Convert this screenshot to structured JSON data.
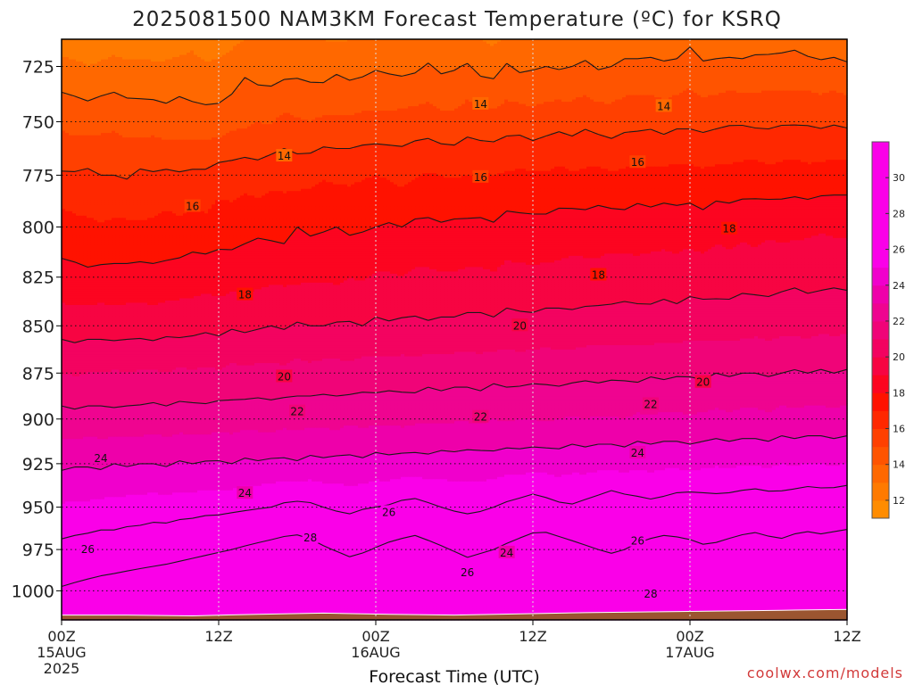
{
  "chart_data": {
    "type": "heatmap",
    "title": "2025081500 NAM3KM Forecast Temperature (ºC) for KSRQ",
    "xlabel": "Forecast Time (UTC)",
    "ylabel": "",
    "credit": "coolwx.com/models",
    "x_ticks": [
      {
        "hour": 0,
        "lines": [
          "00Z",
          "15AUG",
          "2025"
        ]
      },
      {
        "hour": 12,
        "lines": [
          "12Z"
        ]
      },
      {
        "hour": 24,
        "lines": [
          "00Z",
          "16AUG"
        ]
      },
      {
        "hour": 36,
        "lines": [
          "12Z"
        ]
      },
      {
        "hour": 48,
        "lines": [
          "00Z",
          "17AUG"
        ]
      },
      {
        "hour": 60,
        "lines": [
          "12Z"
        ]
      }
    ],
    "y_ticks": [
      725,
      750,
      775,
      800,
      825,
      850,
      875,
      900,
      925,
      950,
      975,
      1000
    ],
    "xlim": [
      0,
      60
    ],
    "ylim_pressure_hPa": [
      713,
      1018
    ],
    "y_scale": "log",
    "grid": true,
    "colorbar": {
      "ticks": [
        12,
        14,
        16,
        18,
        20,
        22,
        24,
        26,
        28,
        30
      ],
      "range": [
        11,
        32
      ],
      "position": "right"
    },
    "levels": [
      11,
      12,
      13,
      14,
      15,
      16,
      17,
      18,
      19,
      20,
      21,
      22,
      23,
      24,
      25,
      26,
      27,
      28,
      29,
      30,
      31,
      32
    ],
    "colors": [
      "#ff8c00",
      "#ff7a00",
      "#ff6800",
      "#ff5400",
      "#ff4000",
      "#ff2800",
      "#ff1200",
      "#fc0520",
      "#f70442",
      "#f30360",
      "#f00478",
      "#ef0490",
      "#ee00aa",
      "#f000cc",
      "#fa00e8"
    ],
    "contour_levels": [
      14,
      16,
      18,
      20,
      22,
      24,
      26,
      28
    ],
    "surface_color": "#9b5530",
    "surface_pressure_hPa": [
      1015.0,
      1015.0,
      1015.5,
      1014.5,
      1013.8,
      1014.5,
      1015.0,
      1014.2,
      1013.5,
      1013.0,
      1012.5,
      1012.0,
      1011.5
    ],
    "surface_hours": [
      0,
      5,
      10,
      15,
      20,
      25,
      30,
      35,
      40,
      45,
      50,
      55,
      60
    ],
    "hours": [
      0,
      1,
      2,
      3,
      4,
      5,
      6,
      7,
      8,
      9,
      10,
      11,
      12,
      13,
      14,
      15,
      16,
      17,
      18,
      19,
      20,
      21,
      22,
      23,
      24,
      25,
      26,
      27,
      28,
      29,
      30,
      31,
      32,
      33,
      34,
      35,
      36,
      37,
      38,
      39,
      40,
      41,
      42,
      43,
      44,
      45,
      46,
      47,
      48,
      49,
      50,
      51,
      52,
      53,
      54,
      55,
      56,
      57,
      58,
      59,
      60
    ],
    "pressures_hPa": [
      713,
      725,
      750,
      775,
      800,
      825,
      850,
      875,
      900,
      925,
      950,
      975,
      1000,
      1018
    ],
    "temperature_C": [
      [
        12.4,
        12.2,
        12.0,
        12.2,
        12.6,
        12.4,
        12.3,
        12.5,
        12.3,
        12.4,
        12.8,
        12.4,
        12.6,
        12.8,
        13.0,
        13.2,
        13.0,
        13.0,
        13.1,
        13.1,
        13.0,
        12.9,
        13.0,
        13.1,
        13.2,
        13.2,
        13.1,
        13.1,
        13.3,
        13.2,
        13.2,
        13.2,
        13.0,
        12.8,
        13.2,
        13.3,
        13.4,
        13.3,
        13.2,
        13.5,
        13.3,
        13.3,
        13.4,
        13.5,
        13.5,
        13.6,
        13.6,
        13.5,
        13.8,
        13.6,
        13.5,
        13.4,
        13.5,
        13.6,
        13.5,
        13.7,
        13.8,
        13.5,
        13.4,
        13.4,
        13.5
      ],
      [
        13.3,
        13.3,
        13.0,
        13.2,
        13.3,
        13.2,
        13.3,
        13.1,
        13.2,
        13.4,
        13.3,
        13.1,
        13.2,
        13.3,
        13.8,
        13.5,
        13.5,
        13.6,
        13.7,
        13.6,
        13.5,
        13.8,
        13.6,
        13.7,
        13.9,
        13.8,
        13.7,
        13.8,
        14.1,
        13.8,
        13.9,
        14.1,
        13.7,
        13.6,
        14.1,
        13.8,
        13.9,
        14.0,
        13.9,
        14.0,
        14.2,
        13.9,
        14.0,
        14.2,
        14.2,
        14.2,
        14.1,
        14.2,
        14.5,
        14.1,
        14.2,
        14.3,
        14.2,
        14.3,
        14.4,
        14.3,
        14.3,
        14.3,
        14.2,
        14.3,
        14.1
      ],
      [
        14.8,
        14.6,
        14.6,
        14.7,
        14.8,
        14.6,
        14.5,
        14.6,
        14.4,
        14.5,
        14.4,
        14.4,
        14.4,
        14.7,
        14.8,
        15.0,
        14.9,
        15.3,
        15.1,
        15.0,
        15.2,
        15.2,
        15.2,
        15.3,
        15.3,
        15.3,
        15.4,
        15.5,
        15.5,
        15.3,
        15.3,
        15.6,
        15.4,
        15.4,
        15.6,
        15.6,
        15.4,
        15.6,
        15.7,
        15.6,
        15.8,
        15.6,
        15.5,
        15.7,
        15.7,
        15.8,
        15.6,
        15.8,
        15.8,
        15.7,
        15.8,
        15.9,
        15.9,
        15.8,
        15.8,
        15.9,
        15.9,
        15.9,
        15.8,
        15.9,
        15.8
      ],
      [
        16.1,
        16.1,
        16.2,
        16.0,
        16.0,
        15.9,
        16.2,
        16.1,
        16.2,
        16.1,
        16.2,
        16.2,
        16.5,
        16.5,
        16.6,
        16.4,
        16.7,
        16.7,
        16.6,
        16.7,
        16.9,
        16.8,
        16.8,
        16.9,
        17.0,
        16.9,
        16.7,
        16.9,
        17.1,
        17.0,
        16.9,
        17.0,
        17.1,
        17.0,
        17.1,
        17.2,
        17.1,
        17.1,
        17.3,
        17.1,
        17.2,
        17.3,
        17.1,
        17.2,
        17.4,
        17.2,
        17.3,
        17.3,
        17.3,
        17.2,
        17.3,
        17.3,
        17.4,
        17.5,
        17.3,
        17.4,
        17.5,
        17.3,
        17.4,
        17.5,
        17.5
      ],
      [
        17.5,
        17.3,
        17.2,
        17.1,
        17.2,
        17.2,
        17.1,
        17.2,
        17.4,
        17.2,
        17.5,
        17.3,
        17.6,
        17.5,
        17.7,
        17.8,
        17.7,
        17.6,
        18.0,
        17.8,
        17.9,
        18.0,
        17.8,
        17.9,
        18.0,
        18.1,
        18.0,
        18.2,
        18.2,
        18.1,
        18.2,
        18.2,
        18.2,
        18.1,
        18.4,
        18.3,
        18.3,
        18.3,
        18.4,
        18.5,
        18.4,
        18.5,
        18.5,
        18.4,
        18.5,
        18.5,
        18.6,
        18.5,
        18.6,
        18.4,
        18.7,
        18.6,
        18.7,
        18.6,
        18.8,
        18.7,
        18.7,
        18.8,
        18.9,
        18.8,
        18.8
      ],
      [
        18.3,
        18.3,
        18.2,
        18.3,
        18.3,
        18.3,
        18.4,
        18.3,
        18.3,
        18.5,
        18.5,
        18.6,
        18.5,
        18.6,
        18.6,
        18.7,
        18.8,
        18.8,
        18.8,
        18.9,
        18.9,
        18.8,
        19.0,
        18.9,
        19.1,
        19.1,
        19.0,
        19.2,
        19.2,
        19.1,
        19.1,
        19.2,
        19.2,
        19.1,
        19.3,
        19.3,
        19.2,
        19.3,
        19.3,
        19.4,
        19.4,
        19.3,
        19.5,
        19.5,
        19.4,
        19.5,
        19.5,
        19.4,
        19.6,
        19.5,
        19.6,
        19.5,
        19.7,
        19.6,
        19.6,
        19.7,
        19.8,
        19.7,
        19.7,
        19.8,
        19.7
      ],
      [
        19.6,
        19.5,
        19.6,
        19.6,
        19.5,
        19.6,
        19.6,
        19.5,
        19.7,
        19.6,
        19.7,
        19.8,
        19.7,
        19.9,
        19.8,
        19.9,
        20.0,
        19.9,
        20.1,
        20.0,
        20.0,
        20.1,
        20.1,
        20.0,
        20.2,
        20.1,
        20.2,
        20.2,
        20.1,
        20.2,
        20.2,
        20.3,
        20.3,
        20.2,
        20.4,
        20.3,
        20.3,
        20.4,
        20.4,
        20.3,
        20.4,
        20.5,
        20.4,
        20.5,
        20.5,
        20.4,
        20.6,
        20.5,
        20.6,
        20.6,
        20.5,
        20.6,
        20.6,
        20.7,
        20.6,
        20.7,
        20.7,
        20.6,
        20.8,
        20.7,
        20.8
      ],
      [
        21.0,
        20.9,
        21.0,
        21.0,
        21.1,
        21.0,
        21.1,
        21.1,
        21.0,
        21.2,
        21.1,
        21.2,
        21.1,
        21.3,
        21.2,
        21.3,
        21.3,
        21.2,
        21.4,
        21.3,
        21.4,
        21.4,
        21.3,
        21.5,
        21.4,
        21.5,
        21.5,
        21.4,
        21.6,
        21.5,
        21.6,
        21.6,
        21.5,
        21.7,
        21.6,
        21.6,
        21.7,
        21.7,
        21.6,
        21.7,
        21.8,
        21.7,
        21.8,
        21.8,
        21.7,
        21.9,
        21.8,
        21.9,
        21.9,
        21.8,
        22.0,
        21.9,
        22.0,
        22.0,
        21.9,
        22.0,
        22.1,
        22.0,
        22.1,
        22.0,
        22.1
      ],
      [
        22.4,
        22.3,
        22.4,
        22.4,
        22.3,
        22.4,
        22.4,
        22.5,
        22.4,
        22.5,
        22.5,
        22.4,
        22.6,
        22.5,
        22.6,
        22.6,
        22.5,
        22.7,
        22.6,
        22.7,
        22.7,
        22.6,
        22.8,
        22.7,
        22.8,
        22.8,
        22.7,
        22.8,
        22.9,
        22.8,
        22.9,
        22.9,
        22.8,
        23.0,
        22.9,
        23.0,
        23.0,
        22.9,
        23.0,
        23.1,
        23.0,
        23.1,
        23.1,
        23.0,
        23.2,
        23.1,
        23.2,
        23.2,
        23.1,
        23.2,
        23.3,
        23.2,
        23.3,
        23.3,
        23.2,
        23.4,
        23.3,
        23.4,
        23.4,
        23.3,
        23.4
      ],
      [
        23.8,
        23.9,
        23.9,
        23.8,
        24.0,
        23.9,
        24.0,
        24.0,
        23.9,
        24.1,
        24.0,
        24.1,
        24.1,
        24.0,
        24.2,
        24.1,
        24.2,
        24.2,
        24.1,
        24.3,
        24.2,
        24.3,
        24.3,
        24.2,
        24.4,
        24.3,
        24.4,
        24.4,
        24.3,
        24.5,
        24.4,
        24.5,
        24.5,
        24.4,
        24.6,
        24.5,
        24.6,
        24.6,
        24.5,
        24.7,
        24.6,
        24.7,
        24.7,
        24.6,
        24.8,
        24.7,
        24.8,
        24.8,
        24.7,
        24.8,
        24.9,
        24.8,
        24.9,
        24.9,
        24.8,
        25.0,
        24.9,
        25.0,
        25.0,
        24.9,
        25.0
      ],
      [
        25.1,
        25.2,
        25.2,
        25.3,
        25.3,
        25.4,
        25.4,
        25.5,
        25.4,
        25.5,
        25.5,
        25.6,
        25.6,
        25.7,
        25.8,
        25.9,
        26.0,
        26.2,
        26.3,
        26.2,
        26.0,
        25.8,
        25.7,
        25.9,
        26.0,
        26.1,
        26.3,
        26.4,
        26.2,
        26.0,
        25.8,
        25.7,
        25.8,
        26.0,
        26.2,
        26.4,
        26.6,
        26.4,
        26.2,
        26.1,
        26.3,
        26.5,
        26.8,
        26.6,
        26.4,
        26.3,
        26.4,
        26.6,
        26.7,
        26.6,
        26.5,
        26.6,
        26.7,
        26.8,
        26.7,
        26.6,
        26.8,
        26.9,
        26.8,
        26.9,
        27.0
      ],
      [
        26.3,
        26.4,
        26.5,
        26.6,
        26.6,
        26.7,
        26.8,
        26.9,
        27.0,
        27.2,
        27.4,
        27.6,
        27.8,
        28.0,
        28.2,
        28.4,
        28.6,
        28.8,
        28.9,
        28.6,
        28.2,
        27.9,
        27.6,
        27.8,
        28.1,
        28.4,
        28.6,
        28.8,
        28.5,
        28.2,
        27.9,
        27.6,
        27.8,
        28.0,
        28.3,
        28.6,
        28.9,
        29.1,
        28.8,
        28.5,
        28.2,
        28.0,
        27.8,
        28.0,
        28.3,
        28.6,
        28.8,
        28.6,
        28.4,
        28.2,
        28.3,
        28.5,
        28.7,
        28.8,
        28.6,
        28.5,
        28.7,
        28.8,
        28.7,
        28.8,
        28.9
      ],
      [
        28.2,
        28.4,
        28.6,
        28.8,
        29.0,
        29.2,
        29.4,
        29.6,
        29.8,
        30.0,
        30.2,
        30.4,
        30.6,
        30.8,
        31.0,
        31.2,
        31.4,
        31.6,
        31.3,
        31.0,
        30.6,
        30.2,
        29.9,
        30.2,
        30.5,
        30.8,
        31.0,
        31.2,
        30.8,
        30.4,
        30.0,
        29.7,
        29.9,
        30.2,
        30.6,
        31.0,
        31.3,
        31.5,
        31.2,
        30.9,
        30.6,
        30.3,
        30.0,
        30.3,
        30.6,
        30.9,
        31.1,
        30.8,
        30.5,
        30.3,
        30.4,
        30.6,
        30.8,
        30.9,
        30.7,
        30.6,
        30.8,
        30.9,
        30.8,
        30.9,
        31.0
      ],
      [
        29.2,
        29.4,
        29.6,
        29.8,
        30.0,
        30.2,
        30.4,
        30.6,
        30.8,
        31.0,
        31.2,
        31.4,
        31.6,
        31.8,
        32.0,
        32.2,
        32.4,
        32.6,
        32.3,
        32.0,
        31.6,
        31.2,
        30.9,
        31.2,
        31.5,
        31.8,
        32.0,
        32.2,
        31.8,
        31.4,
        31.0,
        30.7,
        30.9,
        31.2,
        31.6,
        32.0,
        32.3,
        32.5,
        32.2,
        31.9,
        31.6,
        31.3,
        31.0,
        31.3,
        31.6,
        31.9,
        32.1,
        31.8,
        31.5,
        31.3,
        31.4,
        31.6,
        31.8,
        31.9,
        31.7,
        31.6,
        31.8,
        31.9,
        31.8,
        31.9,
        32.0
      ]
    ],
    "label_positions": [
      {
        "text": "14",
        "hour": 32,
        "p": 742
      },
      {
        "text": "14",
        "hour": 46,
        "p": 743
      },
      {
        "text": "14",
        "hour": 17,
        "p": 766
      },
      {
        "text": "16",
        "hour": 32,
        "p": 776
      },
      {
        "text": "16",
        "hour": 44,
        "p": 769
      },
      {
        "text": "16",
        "hour": 10,
        "p": 790
      },
      {
        "text": "18",
        "hour": 51,
        "p": 801
      },
      {
        "text": "18",
        "hour": 41,
        "p": 824
      },
      {
        "text": "18",
        "hour": 14,
        "p": 834
      },
      {
        "text": "20",
        "hour": 35,
        "p": 850
      },
      {
        "text": "20",
        "hour": 49,
        "p": 880
      },
      {
        "text": "20",
        "hour": 17,
        "p": 877
      },
      {
        "text": "22",
        "hour": 18,
        "p": 896
      },
      {
        "text": "22",
        "hour": 32,
        "p": 899
      },
      {
        "text": "22",
        "hour": 45,
        "p": 892
      },
      {
        "text": "24",
        "hour": 3,
        "p": 922
      },
      {
        "text": "24",
        "hour": 14,
        "p": 942
      },
      {
        "text": "24",
        "hour": 44,
        "p": 919
      },
      {
        "text": "24",
        "hour": 34,
        "p": 977
      },
      {
        "text": "26",
        "hour": 2,
        "p": 975
      },
      {
        "text": "26",
        "hour": 25,
        "p": 953
      },
      {
        "text": "26",
        "hour": 31,
        "p": 989
      },
      {
        "text": "26",
        "hour": 44,
        "p": 970
      },
      {
        "text": "28",
        "hour": 19,
        "p": 968
      },
      {
        "text": "28",
        "hour": 45,
        "p": 1002
      }
    ]
  }
}
